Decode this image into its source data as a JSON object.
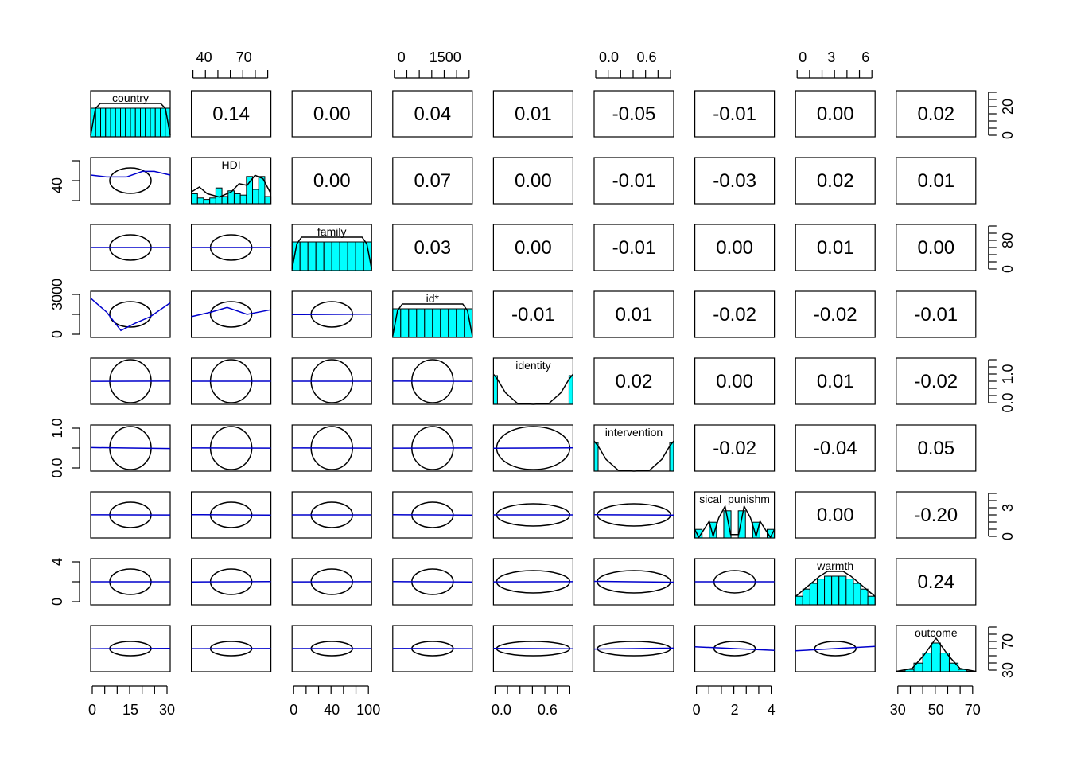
{
  "chart_data": {
    "type": "scatter-matrix",
    "description_of_panels": "pairs.panels style matrix: diagonal = histogram with density curve, upper = correlation coefficient, lower = correlation ellipse with loess smoother",
    "variables": [
      "country",
      "HDI",
      "family",
      "id*",
      "identity",
      "intervention",
      "sical_punishm",
      "warmth",
      "outcome"
    ],
    "upper_correlations": [
      [
        "",
        "0.14",
        "0.00",
        "0.04",
        "0.01",
        "-0.05",
        "-0.01",
        "0.00",
        "0.02"
      ],
      [
        "",
        "",
        "0.00",
        "0.07",
        "0.00",
        "-0.01",
        "-0.03",
        "0.02",
        "0.01"
      ],
      [
        "",
        "",
        "",
        "0.03",
        "0.00",
        "-0.01",
        "0.00",
        "0.01",
        "0.00"
      ],
      [
        "",
        "",
        "",
        "",
        "-0.01",
        "0.01",
        "-0.02",
        "-0.02",
        "-0.01"
      ],
      [
        "",
        "",
        "",
        "",
        "",
        "0.02",
        "0.00",
        "0.01",
        "-0.02"
      ],
      [
        "",
        "",
        "",
        "",
        "",
        "",
        "-0.02",
        "-0.04",
        "0.05"
      ],
      [
        "",
        "",
        "",
        "",
        "",
        "",
        "",
        "0.00",
        "-0.20"
      ],
      [
        "",
        "",
        "",
        "",
        "",
        "",
        "",
        "",
        "0.24"
      ],
      [
        "",
        "",
        "",
        "",
        "",
        "",
        "",
        "",
        ""
      ]
    ],
    "axes": {
      "top": [
        {
          "col": 1,
          "ticks": [
            "40",
            "70"
          ]
        },
        {
          "col": 3,
          "ticks": [
            "0",
            "1500"
          ]
        },
        {
          "col": 5,
          "ticks": [
            "0.0",
            "0.6"
          ]
        },
        {
          "col": 7,
          "ticks": [
            "0",
            "3",
            "6"
          ]
        }
      ],
      "bottom": [
        {
          "col": 0,
          "ticks": [
            "0",
            "15",
            "30"
          ]
        },
        {
          "col": 2,
          "ticks": [
            "0",
            "40",
            "100"
          ]
        },
        {
          "col": 4,
          "ticks": [
            "0.0",
            "0.6"
          ]
        },
        {
          "col": 6,
          "ticks": [
            "0",
            "2",
            "4"
          ]
        },
        {
          "col": 8,
          "ticks": [
            "30",
            "50",
            "70"
          ]
        }
      ],
      "left": [
        {
          "row": 1,
          "ticks": [
            "40"
          ]
        },
        {
          "row": 3,
          "ticks": [
            "0",
            "3000"
          ]
        },
        {
          "row": 5,
          "ticks": [
            "0.0",
            "1.0"
          ]
        },
        {
          "row": 7,
          "ticks": [
            "0",
            "4"
          ]
        }
      ],
      "right": [
        {
          "row": 0,
          "ticks": [
            "0",
            "20"
          ]
        },
        {
          "row": 2,
          "ticks": [
            "0",
            "80"
          ]
        },
        {
          "row": 4,
          "ticks": [
            "0.0",
            "1.0"
          ]
        },
        {
          "row": 6,
          "ticks": [
            "0",
            "3"
          ]
        },
        {
          "row": 8,
          "ticks": [
            "30",
            "70"
          ]
        }
      ]
    },
    "diagonal_histograms": [
      {
        "var": "country",
        "bars": [
          1,
          1,
          1,
          1,
          1,
          1,
          1,
          1,
          1,
          1,
          1,
          1,
          1,
          1,
          1,
          1
        ],
        "density": [
          [
            0,
            0.05
          ],
          [
            0.06,
            0.85
          ],
          [
            0.12,
            1
          ],
          [
            0.88,
            1
          ],
          [
            0.94,
            0.85
          ],
          [
            1,
            0.05
          ]
        ]
      },
      {
        "var": "HDI",
        "bars": [
          0.35,
          0.2,
          0.15,
          0.2,
          0.55,
          0.25,
          0.45,
          0.35,
          0.3,
          0.95,
          0.5,
          0.95,
          0.25
        ],
        "density": [
          [
            0,
            0.35
          ],
          [
            0.1,
            0.5
          ],
          [
            0.2,
            0.3
          ],
          [
            0.35,
            0.2
          ],
          [
            0.5,
            0.35
          ],
          [
            0.6,
            0.6
          ],
          [
            0.7,
            0.55
          ],
          [
            0.8,
            0.85
          ],
          [
            0.9,
            0.75
          ],
          [
            1,
            0.3
          ]
        ]
      },
      {
        "var": "family",
        "bars": [
          1,
          1,
          1,
          1,
          1,
          1,
          1,
          1,
          1,
          1
        ],
        "density": [
          [
            0,
            0.05
          ],
          [
            0.06,
            0.8
          ],
          [
            0.12,
            1
          ],
          [
            0.88,
            1
          ],
          [
            0.94,
            0.8
          ],
          [
            1,
            0.05
          ]
        ]
      },
      {
        "var": "id*",
        "bars": [
          1,
          1,
          1,
          1,
          1,
          1,
          1,
          1,
          1,
          1
        ],
        "density": [
          [
            0,
            0.05
          ],
          [
            0.06,
            0.8
          ],
          [
            0.12,
            1
          ],
          [
            0.88,
            1
          ],
          [
            0.94,
            0.8
          ],
          [
            1,
            0.05
          ]
        ]
      },
      {
        "var": "identity",
        "bars": [
          1,
          0,
          0,
          0,
          0,
          0,
          0,
          0,
          0,
          0,
          0,
          0,
          0,
          0,
          0,
          0,
          0,
          0,
          0,
          1
        ],
        "density": [
          [
            0,
            0.9
          ],
          [
            0.05,
            0.75
          ],
          [
            0.15,
            0.35
          ],
          [
            0.3,
            0.03
          ],
          [
            0.5,
            0
          ],
          [
            0.7,
            0.03
          ],
          [
            0.85,
            0.35
          ],
          [
            0.95,
            0.75
          ],
          [
            1,
            0.9
          ]
        ]
      },
      {
        "var": "intervention",
        "bars": [
          1,
          0,
          0,
          0,
          0,
          0,
          0,
          0,
          0,
          0,
          0,
          0,
          0,
          0,
          0,
          0,
          0,
          0,
          0,
          1
        ],
        "density": [
          [
            0,
            0.9
          ],
          [
            0.05,
            0.75
          ],
          [
            0.15,
            0.35
          ],
          [
            0.3,
            0.03
          ],
          [
            0.5,
            0
          ],
          [
            0.7,
            0.03
          ],
          [
            0.85,
            0.35
          ],
          [
            0.95,
            0.75
          ],
          [
            1,
            0.9
          ]
        ]
      },
      {
        "var": "sical_punishm",
        "bars": [
          0.3,
          0,
          0.55,
          0,
          0.95,
          0,
          0.95,
          0,
          0.55,
          0,
          0.3
        ],
        "density": [
          [
            0,
            0.25
          ],
          [
            0.05,
            0.02
          ],
          [
            0.1,
            0.2
          ],
          [
            0.18,
            0.5
          ],
          [
            0.23,
            0.05
          ],
          [
            0.3,
            0.6
          ],
          [
            0.38,
            0.95
          ],
          [
            0.45,
            0.1
          ],
          [
            0.55,
            0.1
          ],
          [
            0.62,
            0.95
          ],
          [
            0.7,
            0.6
          ],
          [
            0.77,
            0.05
          ],
          [
            0.82,
            0.5
          ],
          [
            0.9,
            0.2
          ],
          [
            0.95,
            0.02
          ],
          [
            1,
            0.25
          ]
        ]
      },
      {
        "var": "warmth",
        "bars": [
          0.3,
          0.55,
          0.75,
          0.9,
          1,
          1,
          1,
          0.9,
          0.75,
          0.55,
          0.3
        ],
        "density": [
          [
            0,
            0.25
          ],
          [
            0.15,
            0.55
          ],
          [
            0.3,
            0.85
          ],
          [
            0.4,
            1
          ],
          [
            0.6,
            1
          ],
          [
            0.7,
            0.85
          ],
          [
            0.85,
            0.55
          ],
          [
            1,
            0.25
          ]
        ]
      },
      {
        "var": "outcome",
        "bars": [
          0.02,
          0.08,
          0.3,
          0.65,
          1,
          0.65,
          0.3,
          0.08,
          0.02
        ],
        "density": [
          [
            0,
            0.01
          ],
          [
            0.2,
            0.1
          ],
          [
            0.35,
            0.5
          ],
          [
            0.5,
            1
          ],
          [
            0.65,
            0.5
          ],
          [
            0.8,
            0.1
          ],
          [
            1,
            0.01
          ]
        ]
      }
    ],
    "ellipse_shape": "lower panels show ellipses; width widens for binary/ordinal x variables",
    "colors": {
      "hist_fill": "#00ffff",
      "smoother": "#0000cc",
      "frame": "#000000"
    }
  }
}
